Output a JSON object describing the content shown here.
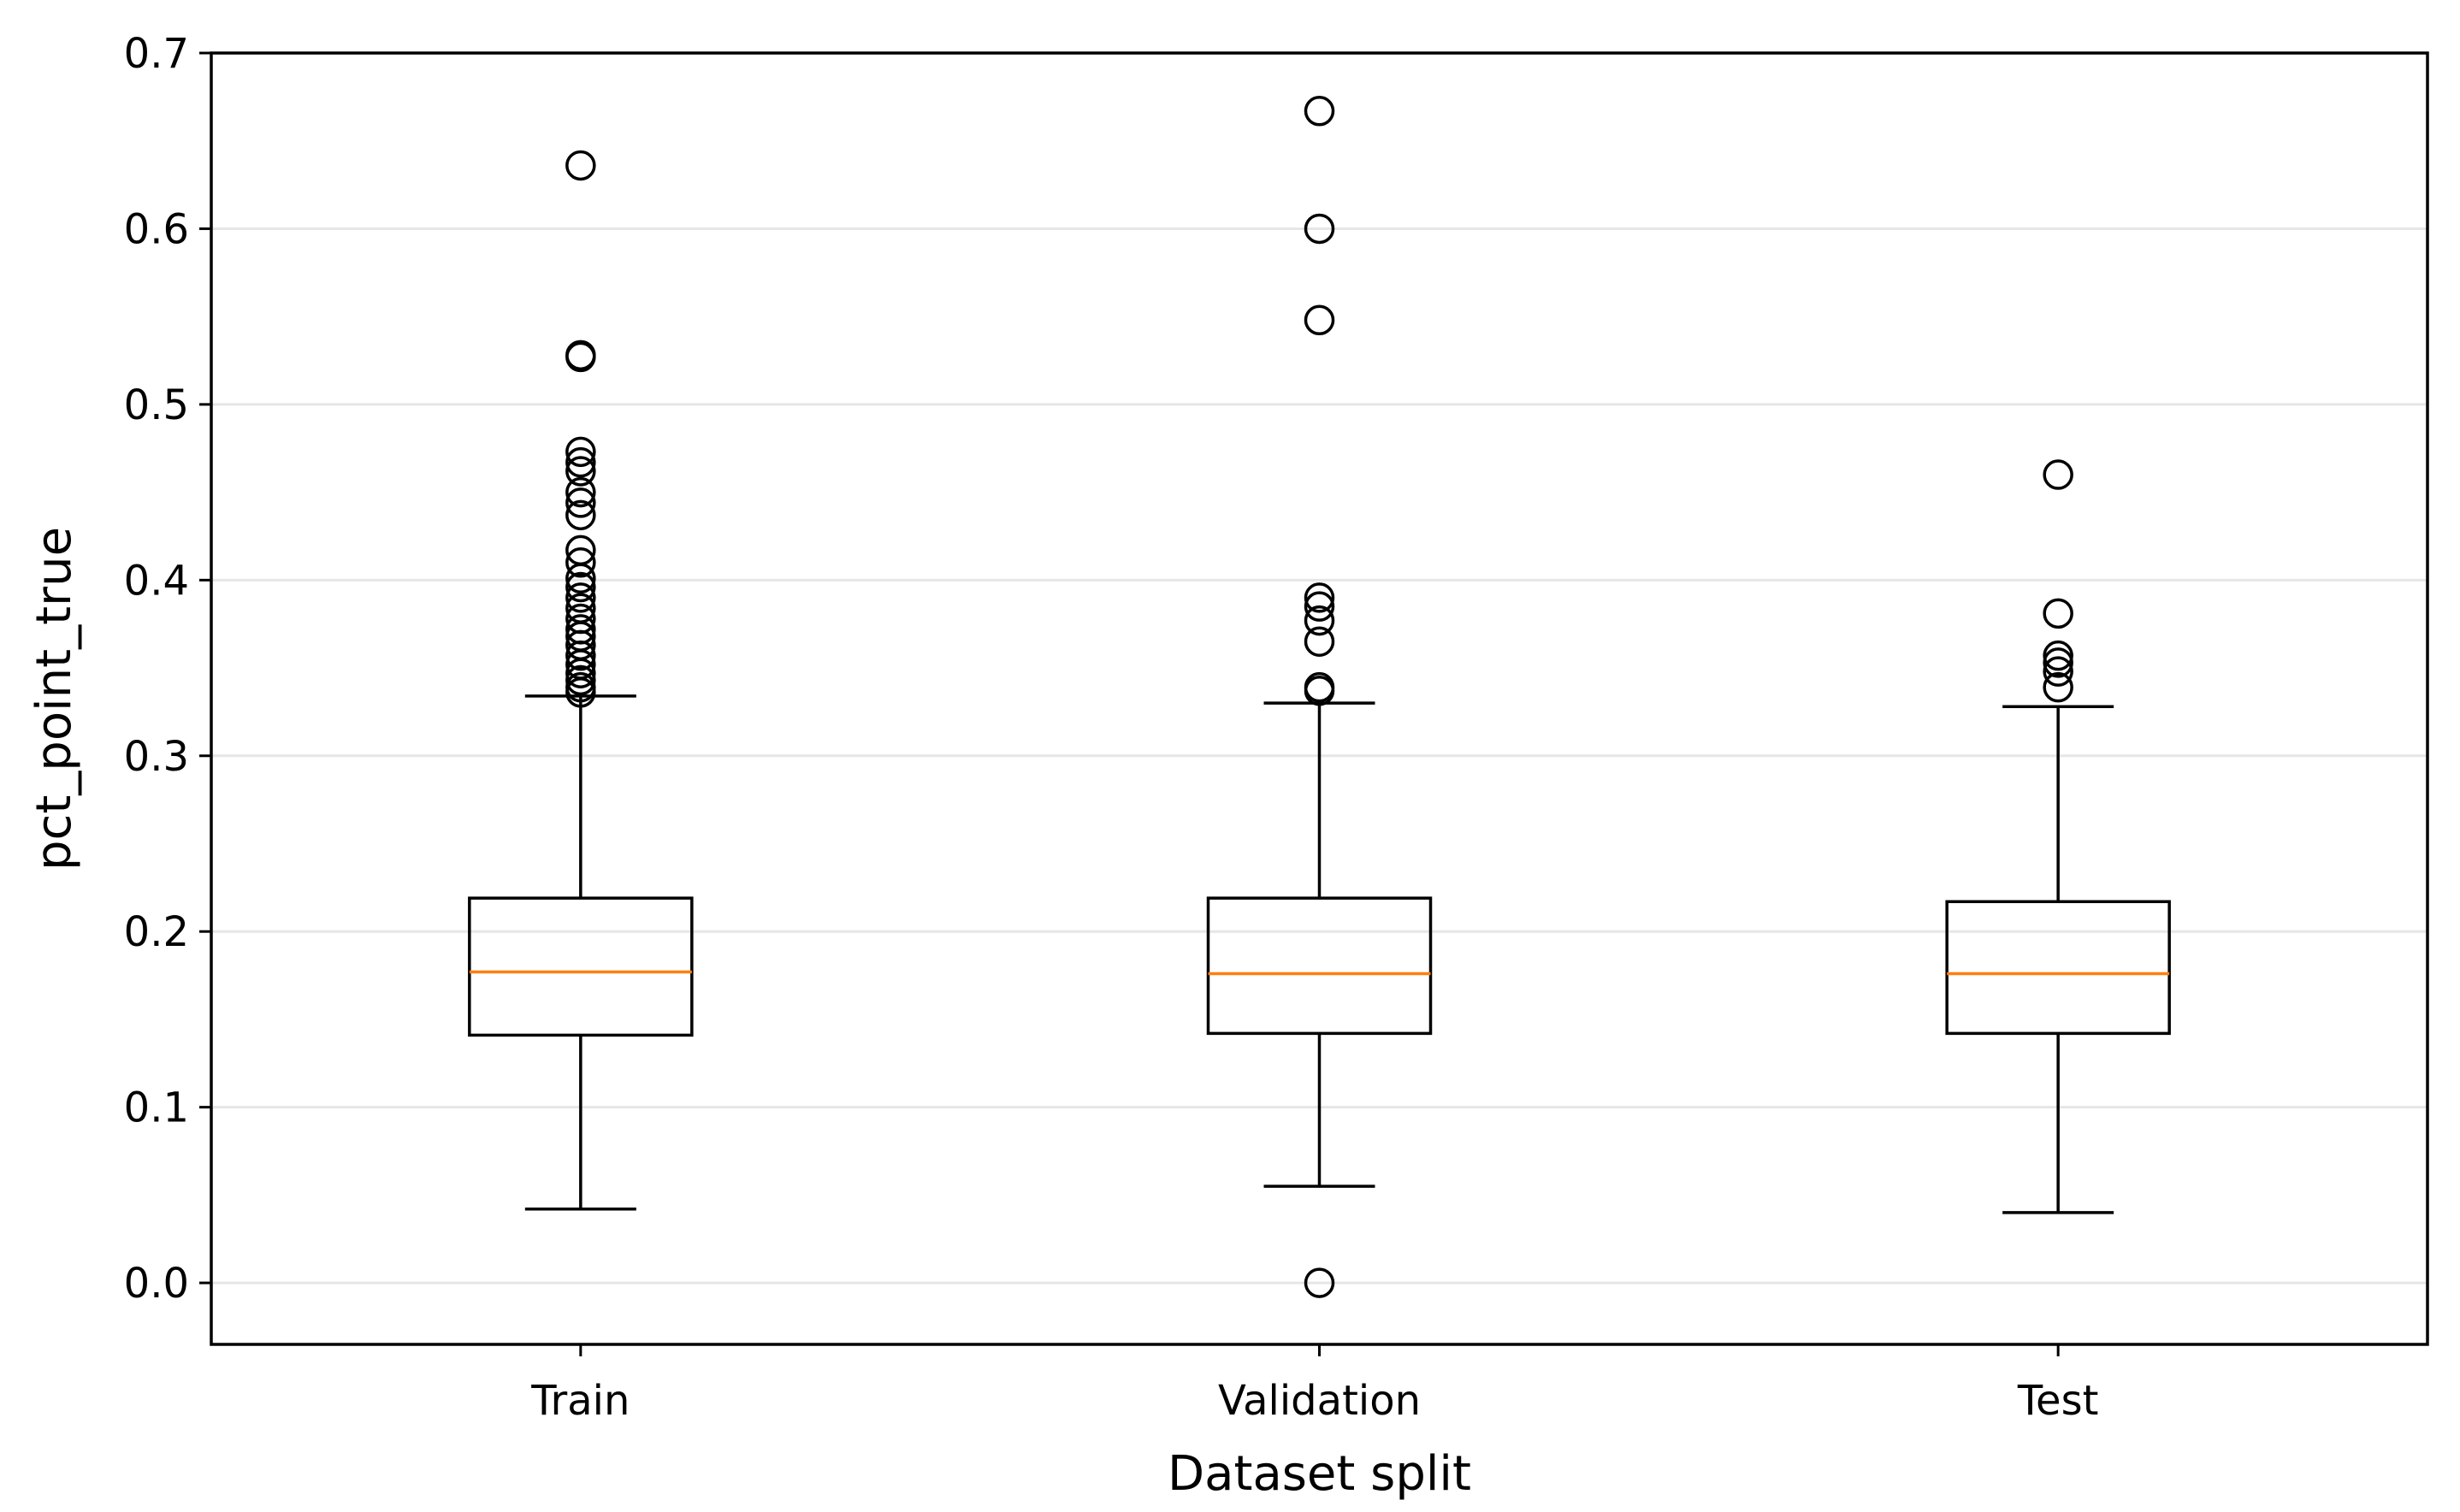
{
  "chart_data": {
    "type": "box",
    "title": "",
    "xlabel": "Dataset split",
    "ylabel": "pct_point_true",
    "ylim": [
      -0.035,
      0.7
    ],
    "yticks": [
      "0.0",
      "0.1",
      "0.2",
      "0.3",
      "0.4",
      "0.5",
      "0.6",
      "0.7"
    ],
    "ytick_values": [
      0.0,
      0.1,
      0.2,
      0.3,
      0.4,
      0.5,
      0.6,
      0.7
    ],
    "grid": "horizontal",
    "categories": [
      "Train",
      "Validation",
      "Test"
    ],
    "boxes": [
      {
        "name": "Train",
        "whisker_low": 0.042,
        "q1": 0.141,
        "median": 0.177,
        "q3": 0.219,
        "whisker_high": 0.334,
        "outliers": [
          0.636,
          0.528,
          0.527,
          0.473,
          0.467,
          0.462,
          0.45,
          0.444,
          0.437,
          0.417,
          0.41,
          0.401,
          0.396,
          0.39,
          0.384,
          0.378,
          0.372,
          0.368,
          0.363,
          0.357,
          0.352,
          0.347,
          0.343,
          0.339,
          0.336
        ]
      },
      {
        "name": "Validation",
        "whisker_low": 0.055,
        "q1": 0.142,
        "median": 0.176,
        "q3": 0.219,
        "whisker_high": 0.33,
        "outliers": [
          0.667,
          0.6,
          0.548,
          0.39,
          0.385,
          0.377,
          0.365,
          0.339,
          0.337,
          0.0
        ]
      },
      {
        "name": "Test",
        "whisker_low": 0.04,
        "q1": 0.142,
        "median": 0.176,
        "q3": 0.217,
        "whisker_high": 0.328,
        "outliers": [
          0.46,
          0.381,
          0.357,
          0.353,
          0.348,
          0.339
        ]
      }
    ],
    "colors": {
      "median": "#ff7f0e",
      "box": "#000000",
      "grid": "#e6e6e6"
    }
  }
}
